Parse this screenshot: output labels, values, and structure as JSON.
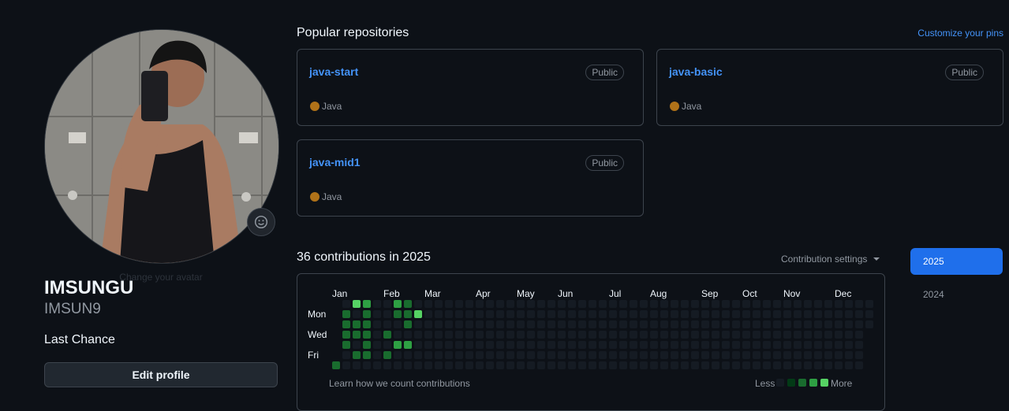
{
  "profile": {
    "display_name": "IMSUNGU",
    "login": "IMSUN9",
    "bio": "Last Chance",
    "avatar_tooltip": "Change your avatar",
    "edit_label": "Edit profile"
  },
  "repos_section": {
    "title": "Popular repositories",
    "customize_label": "Customize your pins",
    "repos": [
      {
        "name": "java-start",
        "visibility": "Public",
        "language": "Java",
        "language_color": "#b07219"
      },
      {
        "name": "java-basic",
        "visibility": "Public",
        "language": "Java",
        "language_color": "#b07219"
      },
      {
        "name": "java-mid1",
        "visibility": "Public",
        "language": "Java",
        "language_color": "#b07219"
      }
    ]
  },
  "contributions": {
    "title": "36 contributions in 2025",
    "settings_label": "Contribution settings",
    "months": [
      "Jan",
      "Feb",
      "Mar",
      "Apr",
      "May",
      "Jun",
      "Jul",
      "Aug",
      "Sep",
      "Oct",
      "Nov",
      "Dec"
    ],
    "days": [
      "Mon",
      "Wed",
      "Fri"
    ],
    "learn_label": "Learn how we count contributions",
    "legend_less": "Less",
    "legend_more": "More",
    "level_colors": [
      "#151b23",
      "#033a16",
      "#196c2e",
      "#2ea043",
      "#56d364"
    ],
    "active_cells": [
      [
        0,
        6,
        2
      ],
      [
        1,
        1,
        2
      ],
      [
        1,
        2,
        2
      ],
      [
        1,
        3,
        2
      ],
      [
        1,
        4,
        2
      ],
      [
        2,
        0,
        4
      ],
      [
        2,
        2,
        2
      ],
      [
        2,
        3,
        2
      ],
      [
        2,
        5,
        2
      ],
      [
        3,
        0,
        3
      ],
      [
        3,
        1,
        2
      ],
      [
        3,
        2,
        2
      ],
      [
        3,
        3,
        2
      ],
      [
        3,
        4,
        2
      ],
      [
        3,
        5,
        2
      ],
      [
        5,
        3,
        2
      ],
      [
        5,
        5,
        2
      ],
      [
        6,
        0,
        3
      ],
      [
        6,
        1,
        2
      ],
      [
        6,
        4,
        3
      ],
      [
        7,
        0,
        2
      ],
      [
        7,
        1,
        2
      ],
      [
        7,
        2,
        2
      ],
      [
        7,
        4,
        3
      ],
      [
        8,
        1,
        4
      ]
    ]
  },
  "years": {
    "items": [
      {
        "label": "2025",
        "active": true
      },
      {
        "label": "2024",
        "active": false
      }
    ]
  },
  "colors": {
    "accent": "#1f6feb",
    "link": "#4493f8",
    "background": "#0d1117"
  }
}
